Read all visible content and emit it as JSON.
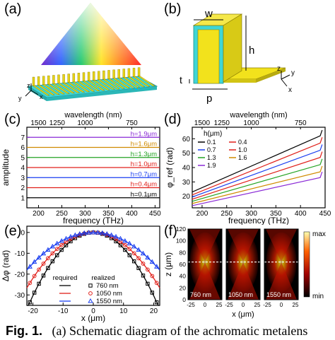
{
  "panel_labels": {
    "a": "(a)",
    "b": "(b)",
    "c": "(c)",
    "d": "(d)",
    "e": "(e)",
    "f": "(f)"
  },
  "panel_a": {
    "axis": {
      "z": "z",
      "y": "y",
      "x": "x"
    }
  },
  "panel_b": {
    "w": "w",
    "h": "h",
    "t": "t",
    "p": "p",
    "axis": {
      "z": "z",
      "y": "y",
      "x": "x"
    },
    "colors": {
      "pillar": "#f2e21c",
      "base": "#3fd6d6"
    }
  },
  "caption": {
    "fig": "Fig. 1.",
    "text": "(a) Schematic diagram of the achromatic metalens"
  },
  "chart_data": [
    {
      "id": "c",
      "type": "line",
      "xlabel": "frequency (THz)",
      "ylabel": "amplitude",
      "top_label": "wavelength (nm)",
      "xlim": [
        175,
        460
      ],
      "ylim": [
        0,
        8
      ],
      "x_ticks": [
        200,
        250,
        300,
        350,
        400,
        450
      ],
      "y_ticks": [
        1,
        2,
        3,
        4,
        5,
        6,
        7
      ],
      "top_ticks": [
        {
          "label": "1500",
          "f": 200
        },
        {
          "label": "1250",
          "f": 240
        },
        {
          "label": "1000",
          "f": 300
        },
        {
          "label": "750",
          "f": 400
        }
      ],
      "series": [
        {
          "name": "h=0.1μm",
          "y": 1.0,
          "color": "#000000"
        },
        {
          "name": "h=0.4μm",
          "y": 2.0,
          "color": "#e0201a"
        },
        {
          "name": "h=0.7μm",
          "y": 3.0,
          "color": "#1a3ef0"
        },
        {
          "name": "h=1.0μm",
          "y": 4.0,
          "color": "#e0201a"
        },
        {
          "name": "h=1.3μm",
          "y": 5.0,
          "color": "#23a323"
        },
        {
          "name": "h=1.6μm",
          "y": 6.0,
          "color": "#d08a00"
        },
        {
          "name": "h=1.9μm",
          "y": 7.0,
          "color": "#8a2ad6"
        }
      ]
    },
    {
      "id": "d",
      "type": "line",
      "xlabel": "frequency (THz)",
      "ylabel": "φ_ref (rad)",
      "top_label": "wavelength (nm)",
      "xlim": [
        180,
        450
      ],
      "ylim": [
        12,
        68
      ],
      "x_ticks": [
        200,
        250,
        300,
        350,
        400,
        450
      ],
      "y_ticks": [
        20,
        30,
        40,
        50,
        60
      ],
      "top_ticks": [
        {
          "label": "1500",
          "f": 200
        },
        {
          "label": "1250",
          "f": 240
        },
        {
          "label": "1000",
          "f": 300
        },
        {
          "label": "750",
          "f": 400
        }
      ],
      "legend_title": "h(μm)",
      "series": [
        {
          "name": "0.1",
          "color": "#000000",
          "x": [
            180,
            440
          ],
          "y": [
            23,
            62
          ]
        },
        {
          "name": "0.4",
          "color": "#e0201a",
          "x": [
            180,
            440
          ],
          "y": [
            21,
            57
          ]
        },
        {
          "name": "0.7",
          "color": "#1a3ef0",
          "x": [
            180,
            440
          ],
          "y": [
            19.5,
            52
          ]
        },
        {
          "name": "1.0",
          "color": "#e0201a",
          "x": [
            180,
            440
          ],
          "y": [
            18,
            47
          ]
        },
        {
          "name": "1.3",
          "color": "#23a323",
          "x": [
            180,
            440
          ],
          "y": [
            16.5,
            42
          ]
        },
        {
          "name": "1.6",
          "color": "#d08a00",
          "x": [
            180,
            440
          ],
          "y": [
            15,
            37
          ]
        },
        {
          "name": "1.9",
          "color": "#8a2ad6",
          "x": [
            180,
            440
          ],
          "y": [
            13.5,
            33
          ]
        }
      ]
    },
    {
      "id": "e",
      "type": "scatter",
      "xlabel": "x (μm)",
      "ylabel": "Δφ (rad)",
      "xlim": [
        -22,
        22
      ],
      "ylim": [
        -35,
        3
      ],
      "x_ticks": [
        -20,
        -10,
        0,
        10,
        20
      ],
      "y_ticks": [
        0,
        -10,
        -20,
        -30
      ],
      "legend": {
        "required": "required",
        "realized": "realized"
      },
      "series": [
        {
          "name": "760 nm",
          "color": "#000000",
          "marker": "square",
          "k": 0.076
        },
        {
          "name": "1050 nm",
          "color": "#e0201a",
          "marker": "circle",
          "k": 0.055
        },
        {
          "name": "1550 nm",
          "color": "#1a3ef0",
          "marker": "triangle",
          "k": 0.0373
        }
      ]
    },
    {
      "id": "f",
      "type": "heatmap",
      "xlabel": "x (μm)",
      "ylabel": "z (μm)",
      "ylim": [
        0,
        120
      ],
      "y_ticks": [
        0,
        20,
        40,
        60,
        80,
        100,
        120
      ],
      "x_ticks": [
        "-25",
        "0",
        "25"
      ],
      "focus_z": 64,
      "colorbar": {
        "max": "max",
        "min": "min"
      },
      "maps": [
        {
          "label": "760 nm"
        },
        {
          "label": "1050 nm"
        },
        {
          "label": "1550 nm"
        }
      ]
    }
  ]
}
